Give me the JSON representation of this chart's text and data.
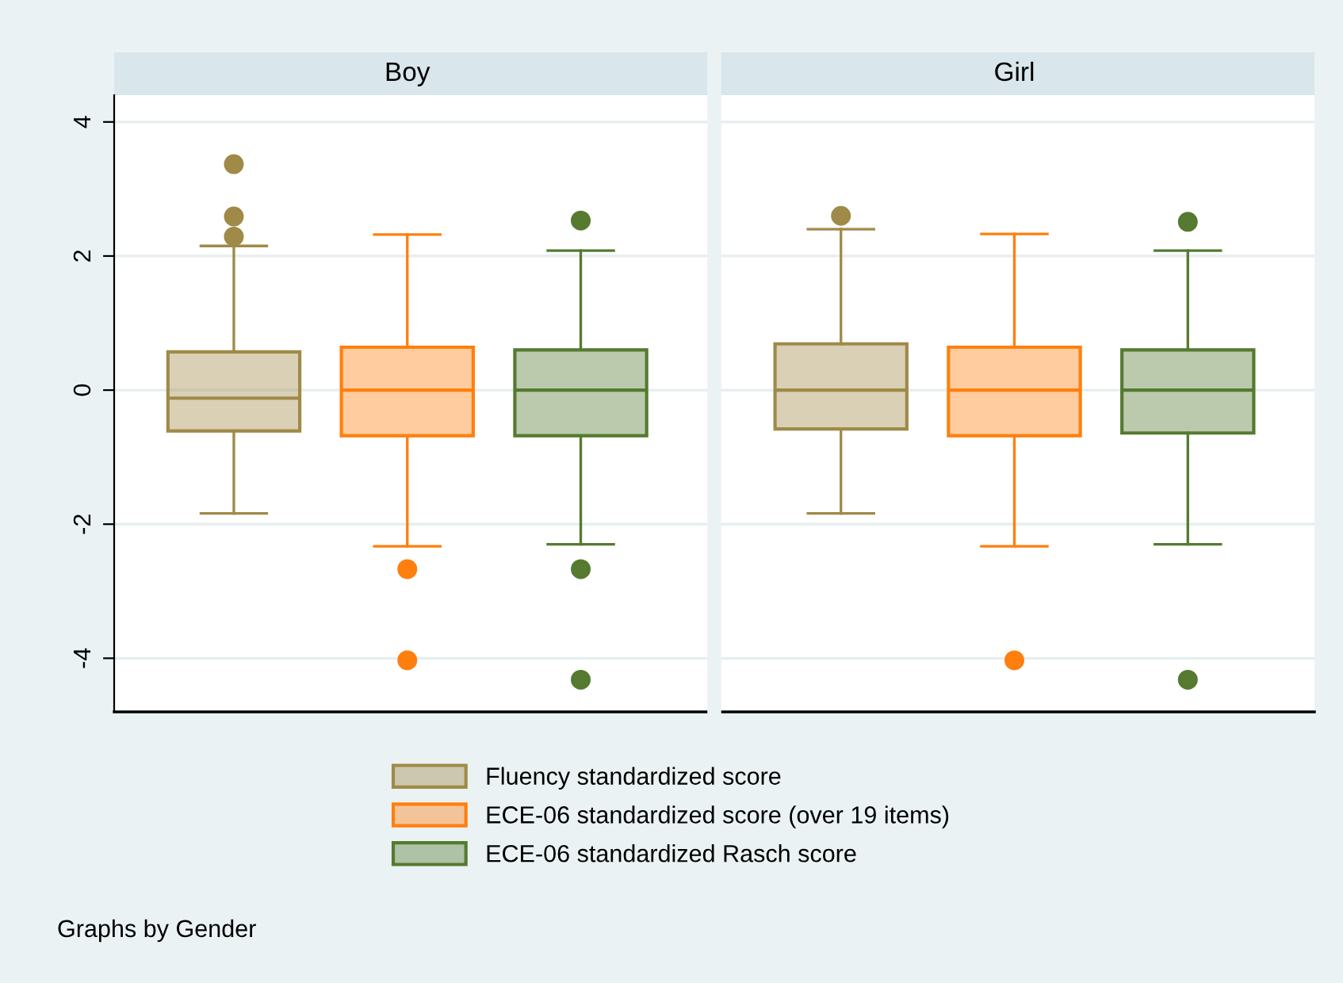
{
  "chart_data": {
    "type": "box",
    "categories": [
      "Boy",
      "Girl"
    ],
    "ylim": [
      -4.8,
      4.4
    ],
    "yticks": [
      -4,
      -2,
      0,
      2,
      4
    ],
    "grid": "y",
    "legend": "bottom",
    "annotations": [
      "Graphs by Gender"
    ],
    "series": [
      {
        "name": "Fluency standardized score",
        "color": "#a08a48",
        "boxes": [
          {
            "low": -1.84,
            "q1": -0.61,
            "median": -0.12,
            "q3": 0.57,
            "high": 2.15,
            "outliers": [
              3.37,
              2.59,
              2.29
            ]
          },
          {
            "low": -1.84,
            "q1": -0.58,
            "median": 0,
            "q3": 0.69,
            "high": 2.4,
            "outliers": [
              2.6
            ]
          }
        ]
      },
      {
        "name": "ECE-06 standardized score (over 19 items)",
        "color": "#ff7f0e",
        "boxes": [
          {
            "low": -2.33,
            "q1": -0.68,
            "median": 0,
            "q3": 0.64,
            "high": 2.32,
            "outliers": [
              -2.67,
              -4.03
            ]
          },
          {
            "low": -2.33,
            "q1": -0.68,
            "median": 0,
            "q3": 0.64,
            "high": 2.33,
            "outliers": [
              -4.03
            ]
          }
        ]
      },
      {
        "name": "ECE-06 standardized Rasch score",
        "color": "#557a30",
        "boxes": [
          {
            "low": -2.3,
            "q1": -0.68,
            "median": 0,
            "q3": 0.6,
            "high": 2.08,
            "outliers": [
              2.53,
              -2.67,
              -4.32
            ]
          },
          {
            "low": -2.3,
            "q1": -0.64,
            "median": 0,
            "q3": 0.6,
            "high": 2.08,
            "outliers": [
              2.51,
              -4.32
            ]
          }
        ]
      }
    ]
  }
}
